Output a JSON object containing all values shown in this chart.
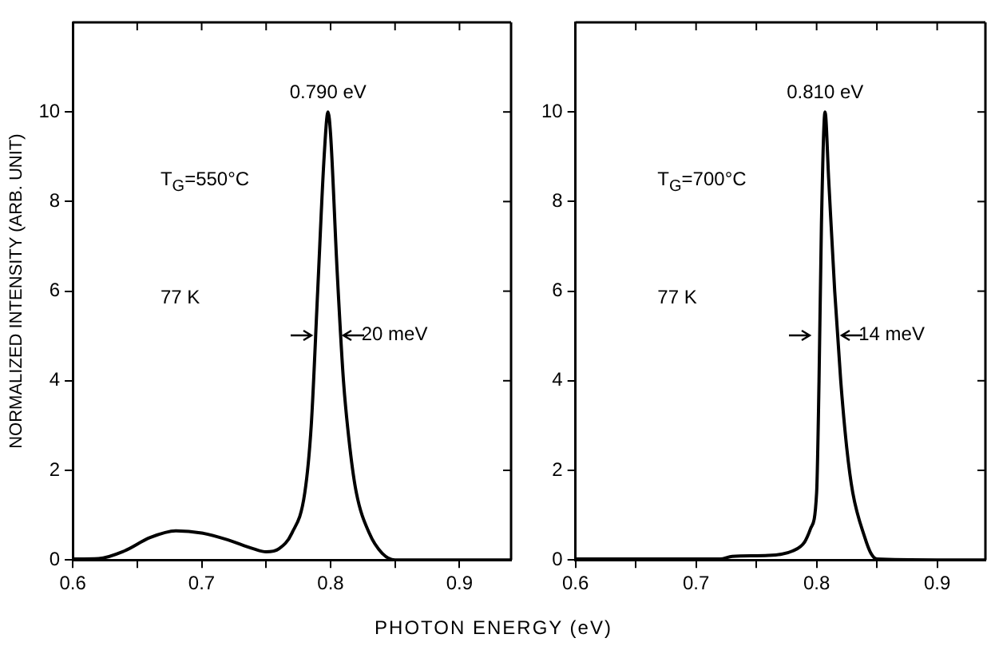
{
  "chart_data": [
    {
      "type": "line",
      "xlabel": "PHOTON ENERGY (eV)",
      "ylabel": "NORMALIZED INTENSITY (ARB. UNIT)",
      "x": [
        0.6,
        0.62,
        0.64,
        0.66,
        0.68,
        0.7,
        0.72,
        0.74,
        0.75,
        0.76,
        0.77,
        0.78,
        0.785,
        0.79,
        0.795,
        0.798,
        0.8,
        0.805,
        0.81,
        0.815,
        0.82,
        0.83,
        0.84,
        0.85,
        0.9,
        0.94
      ],
      "series": [
        {
          "color": "#000000",
          "values": [
            0.02,
            0.03,
            0.2,
            0.5,
            0.65,
            0.6,
            0.45,
            0.25,
            0.18,
            0.25,
            0.6,
            1.5,
            3,
            6,
            9,
            10,
            9.5,
            6.5,
            4,
            2.5,
            1.5,
            0.6,
            0.15,
            0,
            0,
            0
          ]
        }
      ],
      "xlim": [
        0.6,
        0.94
      ],
      "xticks": [
        0.6,
        {
          "value": 0.65,
          "label": null
        },
        0.7,
        {
          "value": 0.75,
          "label": null
        },
        0.8,
        {
          "value": 0.85,
          "label": null
        },
        0.9
      ],
      "ylim": [
        0,
        12
      ],
      "yticks": [
        0,
        2,
        4,
        6,
        8,
        10
      ],
      "grid": false,
      "legend": false,
      "marker": "none",
      "line_style": "solid",
      "annotations": [
        {
          "text": "0.790 eV",
          "x": 0.798,
          "y": 10
        },
        "T$_{G}$=550°C",
        "77 K",
        "20 meV"
      ]
    },
    {
      "type": "line",
      "x": [
        0.6,
        0.65,
        0.7,
        0.72,
        0.73,
        0.76,
        0.78,
        0.79,
        0.795,
        0.8,
        0.802,
        0.804,
        0.807,
        0.81,
        0.815,
        0.82,
        0.825,
        0.83,
        0.84,
        0.845,
        0.85,
        0.9,
        0.94
      ],
      "series": [
        {
          "color": "#000000",
          "values": [
            0.02,
            0.02,
            0.02,
            0.02,
            0.08,
            0.1,
            0.2,
            0.4,
            0.7,
            1.5,
            4,
            7.5,
            10,
            8.5,
            6,
            4,
            2.5,
            1.5,
            0.5,
            0.15,
            0.02,
            0,
            0
          ]
        }
      ],
      "xlim": [
        0.6,
        0.94
      ],
      "xticks": [
        0.6,
        {
          "value": 0.65,
          "label": null
        },
        0.7,
        {
          "value": 0.75,
          "label": null
        },
        0.8,
        {
          "value": 0.85,
          "label": null
        },
        0.9
      ],
      "ylim": [
        0,
        12
      ],
      "yticks": [
        0,
        2,
        4,
        6,
        8,
        10
      ],
      "grid": false,
      "legend": false,
      "marker": "none",
      "line_style": "solid",
      "annotations": [
        {
          "text": "0.810 eV",
          "x": 0.807,
          "y": 10
        },
        "T$_{G}$=700°C",
        "77 K",
        "14 meV"
      ]
    }
  ]
}
